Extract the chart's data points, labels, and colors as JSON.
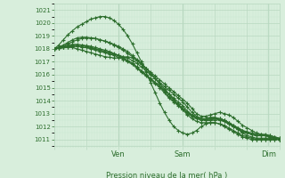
{
  "xlabel": "Pression niveau de la mer( hPa )",
  "ylim": [
    1010.5,
    1021.5
  ],
  "yticks": [
    1011,
    1012,
    1013,
    1014,
    1015,
    1016,
    1017,
    1018,
    1019,
    1020,
    1021
  ],
  "bg_color": "#d8eedc",
  "grid_color_major": "#b8d8c0",
  "grid_color_minor": "#c8e8d0",
  "line_color": "#2d6e2d",
  "text_color": "#2d6e2d",
  "xtick_labels": [
    "Ven",
    "Sam",
    "Dim"
  ],
  "xtick_positions": [
    0.285,
    0.571,
    0.952
  ],
  "xlim": [
    0.0,
    1.0
  ],
  "series": [
    [
      1018.0,
      1018.05,
      1018.1,
      1018.15,
      1018.1,
      1018.0,
      1017.9,
      1017.8,
      1017.7,
      1017.6,
      1017.5,
      1017.4,
      1017.35,
      1017.3,
      1017.3,
      1017.35,
      1017.4,
      1017.3,
      1017.1,
      1016.8,
      1016.5,
      1016.2,
      1015.9,
      1015.6,
      1015.3,
      1015.0,
      1014.7,
      1014.4,
      1014.1,
      1013.8,
      1013.4,
      1013.0,
      1012.8,
      1012.8,
      1012.9,
      1013.0,
      1013.1,
      1013.0,
      1012.9,
      1012.7,
      1012.4,
      1012.1,
      1011.9,
      1011.7,
      1011.5,
      1011.4,
      1011.3,
      1011.2,
      1011.1,
      1011.0
    ],
    [
      1018.0,
      1018.3,
      1018.7,
      1019.1,
      1019.4,
      1019.7,
      1019.9,
      1020.1,
      1020.3,
      1020.4,
      1020.5,
      1020.5,
      1020.4,
      1020.2,
      1019.9,
      1019.5,
      1019.0,
      1018.4,
      1017.7,
      1017.0,
      1016.2,
      1015.4,
      1014.6,
      1013.8,
      1013.1,
      1012.5,
      1012.0,
      1011.7,
      1011.5,
      1011.4,
      1011.5,
      1011.7,
      1012.0,
      1012.2,
      1012.3,
      1012.3,
      1012.2,
      1012.0,
      1011.8,
      1011.6,
      1011.4,
      1011.2,
      1011.1,
      1011.0,
      1011.0,
      1011.0,
      1011.0,
      1011.0,
      1011.0,
      1011.0
    ],
    [
      1018.0,
      1018.05,
      1018.1,
      1018.2,
      1018.2,
      1018.2,
      1018.15,
      1018.1,
      1018.05,
      1018.0,
      1017.9,
      1017.8,
      1017.7,
      1017.6,
      1017.5,
      1017.4,
      1017.3,
      1017.1,
      1016.9,
      1016.6,
      1016.3,
      1016.0,
      1015.7,
      1015.4,
      1015.1,
      1014.8,
      1014.5,
      1014.2,
      1013.9,
      1013.5,
      1013.1,
      1012.8,
      1012.6,
      1012.5,
      1012.5,
      1012.6,
      1012.6,
      1012.5,
      1012.3,
      1012.1,
      1011.9,
      1011.7,
      1011.6,
      1011.5,
      1011.4,
      1011.4,
      1011.4,
      1011.3,
      1011.2,
      1011.1
    ],
    [
      1018.0,
      1018.1,
      1018.2,
      1018.3,
      1018.35,
      1018.35,
      1018.3,
      1018.2,
      1018.1,
      1018.0,
      1017.9,
      1017.8,
      1017.7,
      1017.6,
      1017.5,
      1017.3,
      1017.1,
      1016.9,
      1016.6,
      1016.3,
      1016.0,
      1015.7,
      1015.4,
      1015.1,
      1014.8,
      1014.5,
      1014.2,
      1013.9,
      1013.6,
      1013.2,
      1012.9,
      1012.7,
      1012.6,
      1012.5,
      1012.5,
      1012.5,
      1012.5,
      1012.4,
      1012.2,
      1012.0,
      1011.8,
      1011.6,
      1011.5,
      1011.4,
      1011.3,
      1011.3,
      1011.3,
      1011.3,
      1011.2,
      1011.1
    ],
    [
      1018.0,
      1018.15,
      1018.3,
      1018.5,
      1018.7,
      1018.85,
      1018.9,
      1018.9,
      1018.85,
      1018.8,
      1018.7,
      1018.6,
      1018.5,
      1018.35,
      1018.2,
      1018.0,
      1017.8,
      1017.5,
      1017.2,
      1016.9,
      1016.5,
      1016.1,
      1015.7,
      1015.3,
      1014.9,
      1014.5,
      1014.1,
      1013.7,
      1013.3,
      1012.9,
      1012.6,
      1012.4,
      1012.3,
      1012.3,
      1012.3,
      1012.3,
      1012.2,
      1012.1,
      1011.9,
      1011.7,
      1011.5,
      1011.3,
      1011.2,
      1011.1,
      1011.0,
      1011.0,
      1011.0,
      1011.0,
      1011.0,
      1011.0
    ],
    [
      1018.0,
      1018.05,
      1018.1,
      1018.2,
      1018.25,
      1018.3,
      1018.3,
      1018.25,
      1018.2,
      1018.1,
      1018.0,
      1017.9,
      1017.8,
      1017.65,
      1017.5,
      1017.3,
      1017.1,
      1016.9,
      1016.6,
      1016.3,
      1016.0,
      1015.7,
      1015.4,
      1015.1,
      1014.7,
      1014.3,
      1014.0,
      1013.7,
      1013.4,
      1013.1,
      1012.8,
      1012.6,
      1012.5,
      1012.5,
      1012.6,
      1012.6,
      1012.5,
      1012.4,
      1012.2,
      1012.0,
      1011.8,
      1011.6,
      1011.5,
      1011.4,
      1011.3,
      1011.3,
      1011.3,
      1011.2,
      1011.1,
      1011.0
    ],
    [
      1018.0,
      1018.1,
      1018.2,
      1018.4,
      1018.55,
      1018.7,
      1018.8,
      1018.85,
      1018.85,
      1018.8,
      1018.7,
      1018.6,
      1018.45,
      1018.3,
      1018.1,
      1017.9,
      1017.65,
      1017.4,
      1017.1,
      1016.8,
      1016.5,
      1016.1,
      1015.7,
      1015.3,
      1014.9,
      1014.5,
      1014.1,
      1013.7,
      1013.4,
      1013.1,
      1012.9,
      1012.7,
      1012.6,
      1012.6,
      1012.7,
      1012.7,
      1012.6,
      1012.5,
      1012.3,
      1012.0,
      1011.8,
      1011.5,
      1011.3,
      1011.2,
      1011.1,
      1011.1,
      1011.1,
      1011.1,
      1011.1,
      1011.0
    ],
    [
      1018.0,
      1018.05,
      1018.1,
      1018.15,
      1018.2,
      1018.2,
      1018.15,
      1018.1,
      1018.0,
      1017.9,
      1017.8,
      1017.7,
      1017.6,
      1017.5,
      1017.35,
      1017.2,
      1017.0,
      1016.8,
      1016.5,
      1016.2,
      1015.9,
      1015.6,
      1015.3,
      1015.0,
      1014.6,
      1014.2,
      1013.9,
      1013.6,
      1013.3,
      1013.0,
      1012.8,
      1012.7,
      1012.6,
      1012.6,
      1012.7,
      1012.7,
      1012.6,
      1012.5,
      1012.3,
      1012.1,
      1011.9,
      1011.7,
      1011.5,
      1011.4,
      1011.3,
      1011.3,
      1011.3,
      1011.2,
      1011.1,
      1011.0
    ]
  ]
}
